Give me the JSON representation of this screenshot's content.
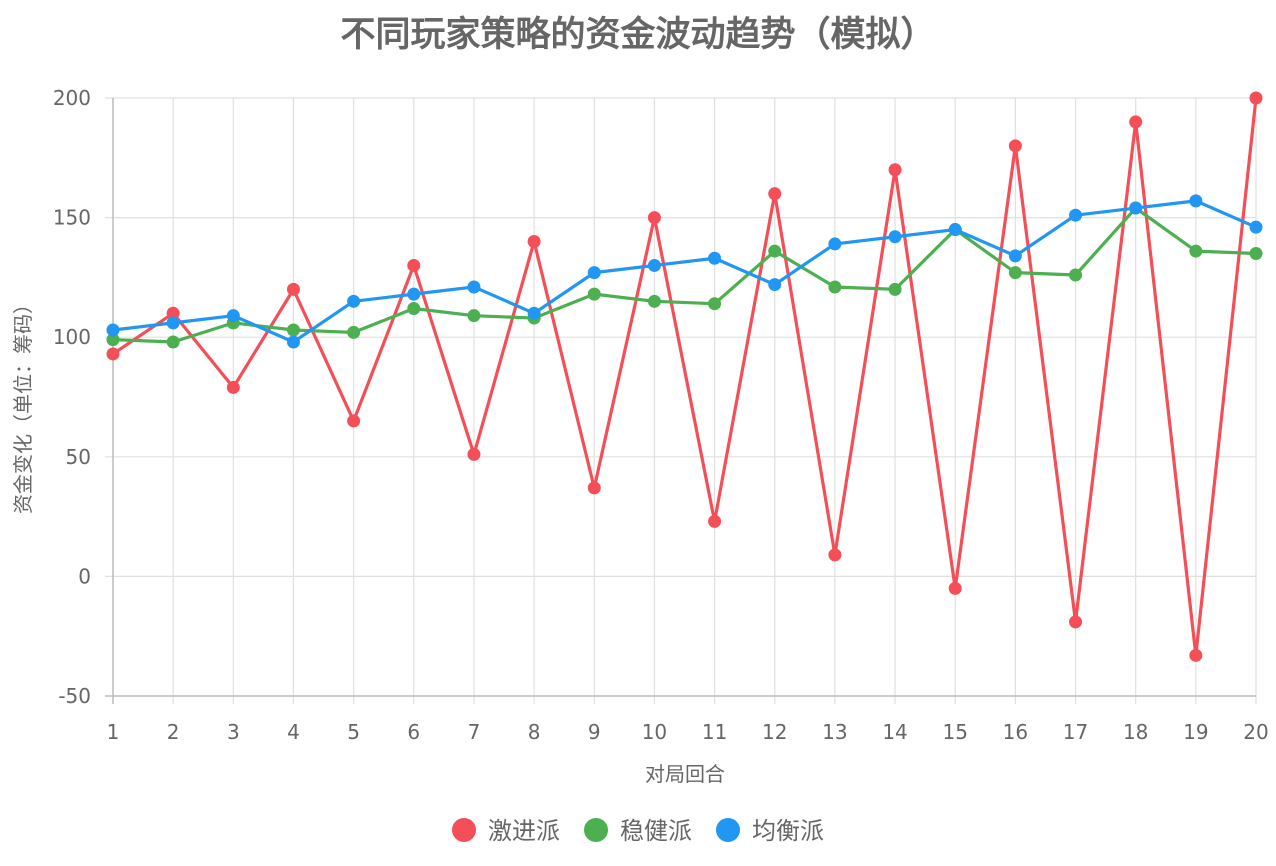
{
  "chart_data": {
    "type": "line",
    "title": "不同玩家策略的资金波动趋势（模拟）",
    "xlabel": "对局回合",
    "ylabel": "资金变化（单位：筹码）",
    "x": [
      1,
      2,
      3,
      4,
      5,
      6,
      7,
      8,
      9,
      10,
      11,
      12,
      13,
      14,
      15,
      16,
      17,
      18,
      19,
      20
    ],
    "x_tick_labels": [
      "1",
      "2",
      "3",
      "4",
      "5",
      "6",
      "7",
      "8",
      "9",
      "10",
      "11",
      "12",
      "13",
      "14",
      "15",
      "16",
      "17",
      "18",
      "19",
      "20"
    ],
    "ylim": [
      -50,
      200
    ],
    "y_ticks": [
      -50,
      0,
      50,
      100,
      150,
      200
    ],
    "y_tick_labels": [
      "-50",
      "0",
      "50",
      "100",
      "150",
      "200"
    ],
    "grid": true,
    "legend_position": "bottom",
    "series": [
      {
        "name": "激进派",
        "color": "#f44f58",
        "values": [
          93,
          110,
          79,
          120,
          65,
          130,
          51,
          140,
          37,
          150,
          23,
          160,
          9,
          170,
          -5,
          180,
          -19,
          190,
          -33,
          200
        ]
      },
      {
        "name": "稳健派",
        "color": "#4caf50",
        "values": [
          99,
          98,
          106,
          103,
          102,
          112,
          109,
          108,
          118,
          115,
          114,
          136,
          121,
          120,
          145,
          127,
          126,
          154,
          136,
          135
        ]
      },
      {
        "name": "均衡派",
        "color": "#2196f3",
        "values": [
          103,
          106,
          109,
          98,
          115,
          118,
          121,
          110,
          127,
          130,
          133,
          122,
          139,
          142,
          145,
          134,
          151,
          154,
          157,
          146
        ]
      }
    ]
  }
}
